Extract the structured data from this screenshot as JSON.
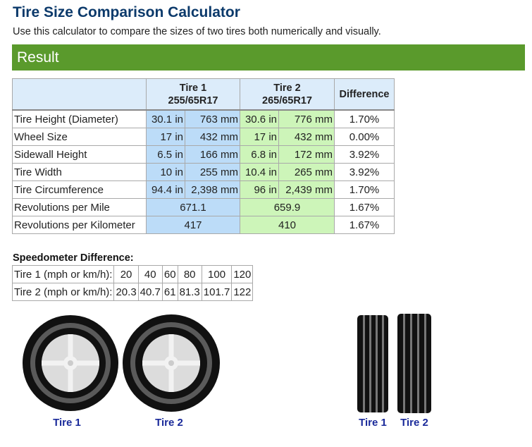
{
  "header": {
    "title": "Tire Size Comparison Calculator",
    "subtitle": "Use this calculator to compare the sizes of two tires both numerically and visually."
  },
  "result": {
    "heading": "Result"
  },
  "table": {
    "tire1": {
      "name": "Tire 1",
      "size": "255/65R17"
    },
    "tire2": {
      "name": "Tire 2",
      "size": "265/65R17"
    },
    "difference": "Difference",
    "rows": [
      [
        "Tire Height (Diameter)",
        "30.1 in",
        "763 mm",
        "30.6 in",
        "776 mm",
        "1.70%"
      ],
      [
        "Wheel Size",
        "17 in",
        "432 mm",
        "17 in",
        "432 mm",
        "0.00%"
      ],
      [
        "Sidewall Height",
        "6.5 in",
        "166 mm",
        "6.8 in",
        "172 mm",
        "3.92%"
      ],
      [
        "Tire Width",
        "10 in",
        "255 mm",
        "10.4 in",
        "265 mm",
        "3.92%"
      ],
      [
        "Tire Circumference",
        "94.4 in",
        "2,398 mm",
        "96 in",
        "2,439 mm",
        "1.70%"
      ],
      [
        "Revolutions per Mile",
        "671.1",
        "659.9",
        "1.67%"
      ],
      [
        "Revolutions per Kilometer",
        "417",
        "410",
        "1.67%"
      ]
    ]
  },
  "speedometer": {
    "title": "Speedometer Difference:",
    "rows": [
      [
        "Tire 1 (mph or km/h):",
        "20",
        "40",
        "60",
        "80",
        "100",
        "120"
      ],
      [
        "Tire 2 (mph or km/h):",
        "20.3",
        "40.7",
        "61",
        "81.3",
        "101.7",
        "122"
      ]
    ]
  }
}
